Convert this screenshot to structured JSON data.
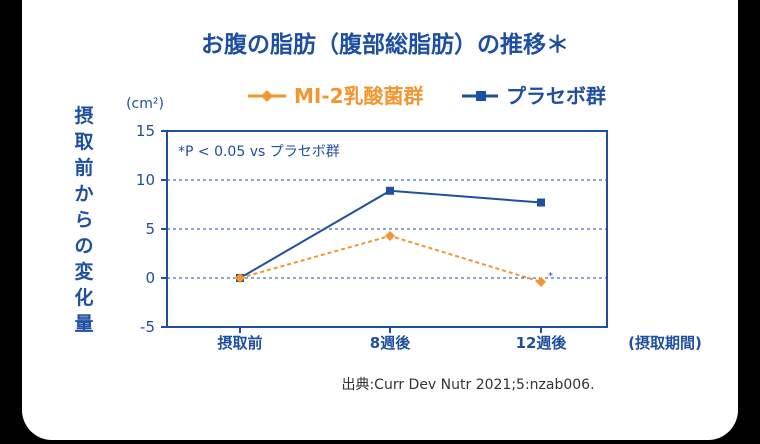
{
  "chart_data": {
    "type": "line",
    "title": "お腹の脂肪（腹部総脂肪）の推移＊",
    "y_unit": "(cm²)",
    "ylabel": "摂取前からの変化量",
    "xlabel": "(摂取期間)",
    "annotation": "*P < 0.05 vs プラセボ群",
    "source": "出典:Curr Dev Nutr 2021;5:nzab006.",
    "categories": [
      "摂取前",
      "8週後",
      "12週後"
    ],
    "yticks": [
      "15",
      "10",
      "5",
      "0",
      "-5"
    ],
    "ylim": [
      -5,
      15
    ],
    "grid": "dashed horizontal",
    "legend_position": "top-right",
    "series": [
      {
        "name": "MI-2乳酸菌群",
        "values": [
          0,
          4.3,
          -0.4
        ],
        "color": "#f29630",
        "marker": "diamond",
        "line": "dashed",
        "significance": [
          "",
          "",
          "*"
        ]
      },
      {
        "name": "プラセボ群",
        "values": [
          0,
          8.9,
          7.7
        ],
        "color": "#1f4fa0",
        "marker": "square",
        "line": "solid"
      }
    ]
  }
}
